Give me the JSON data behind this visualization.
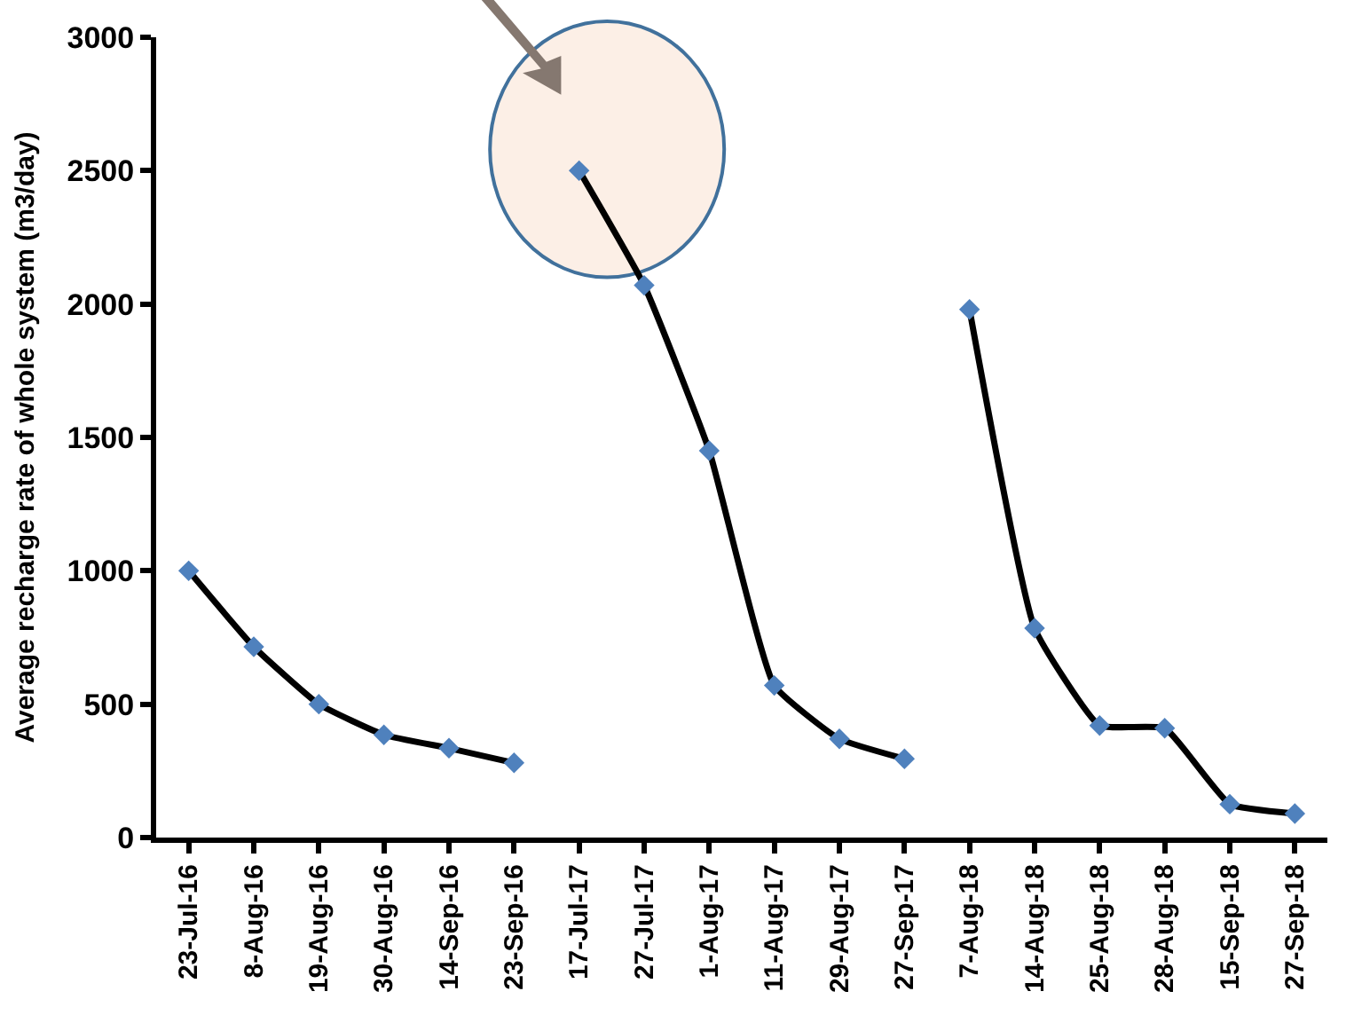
{
  "chart_data": {
    "type": "line",
    "ylabel": "Average recharge rate of whole system (m3/day)",
    "categories": [
      "23-Jul-16",
      "8-Aug-16",
      "19-Aug-16",
      "30-Aug-16",
      "14-Sep-16",
      "23-Sep-16",
      "17-Jul-17",
      "27-Jul-17",
      "1-Aug-17",
      "11-Aug-17",
      "29-Aug-17",
      "27-Sep-17",
      "7-Aug-18",
      "14-Aug-18",
      "25-Aug-18",
      "28-Aug-18",
      "15-Sep-18",
      "27-Sep-18"
    ],
    "series": [
      {
        "color": "#000000",
        "values": [
          1000,
          715,
          500,
          385,
          335,
          280,
          null,
          null,
          null,
          null,
          null,
          null,
          null,
          null,
          null,
          null,
          null,
          null
        ]
      },
      {
        "color": "#000000",
        "values": [
          null,
          null,
          null,
          null,
          null,
          null,
          2500,
          2070,
          1450,
          570,
          370,
          295,
          null,
          null,
          null,
          null,
          null,
          null
        ]
      },
      {
        "color": "#000000",
        "values": [
          null,
          null,
          null,
          null,
          null,
          null,
          null,
          null,
          null,
          null,
          null,
          null,
          1980,
          785,
          420,
          410,
          125,
          90
        ]
      }
    ],
    "marker": "diamond",
    "line_style": "solid",
    "grid": false,
    "ylim": [
      0,
      3000
    ],
    "yticks": [
      0,
      500,
      1000,
      1500,
      2000,
      2500,
      3000
    ]
  }
}
